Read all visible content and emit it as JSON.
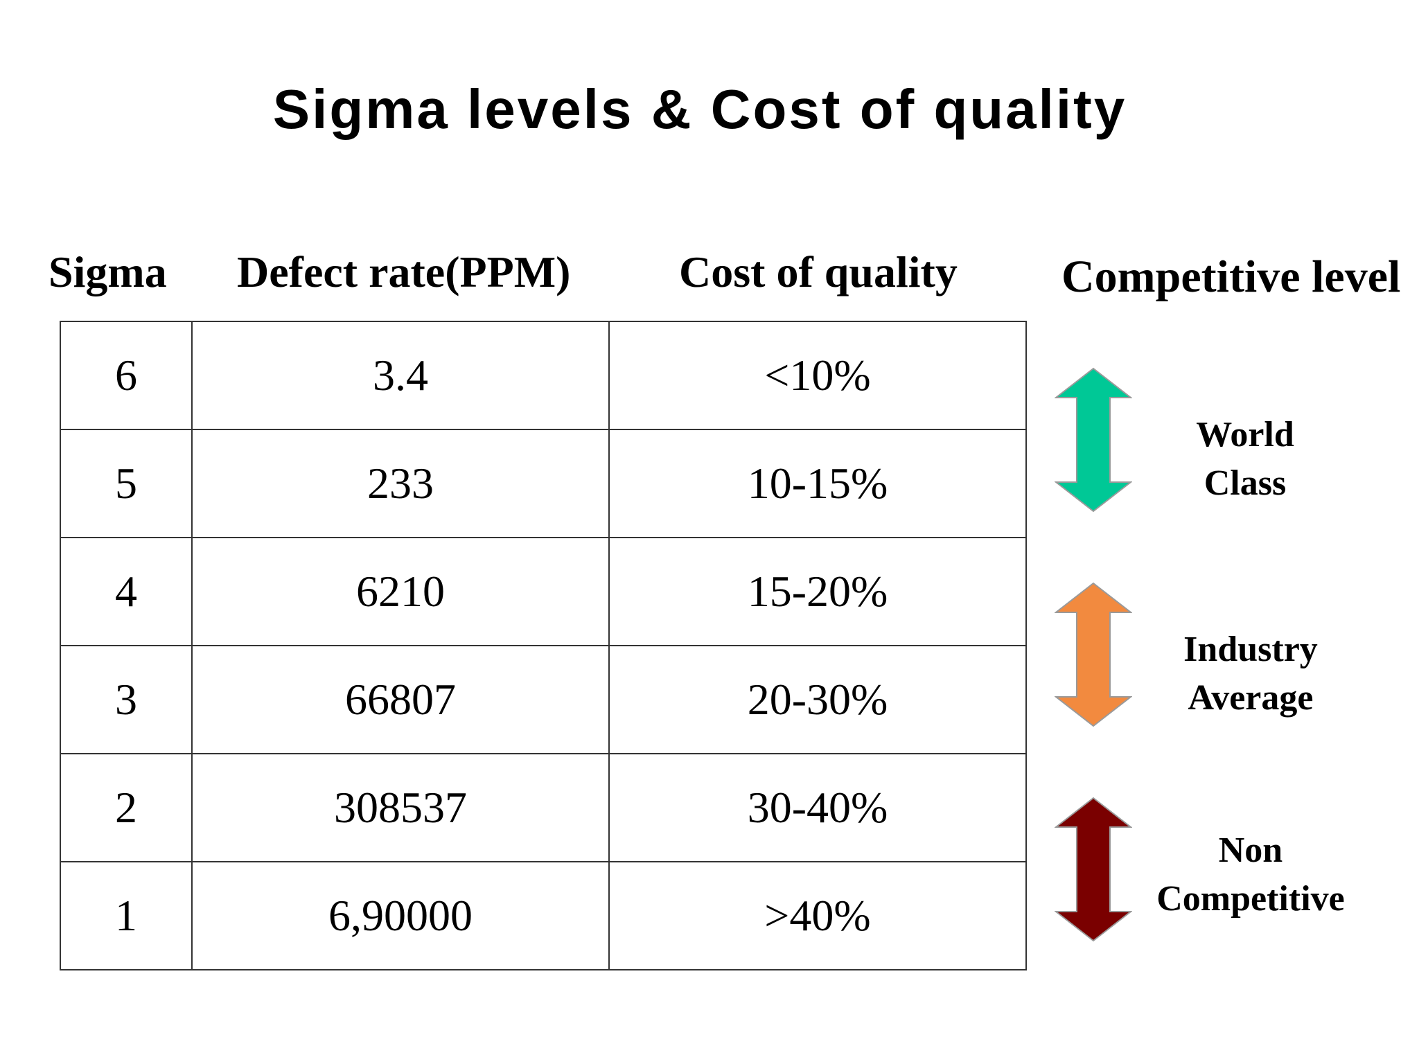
{
  "slide": {
    "title": "Sigma levels & Cost of quality"
  },
  "headers": {
    "sigma": "Sigma",
    "defect_rate": "Defect rate(PPM)",
    "cost_of_quality": "Cost of quality",
    "competitive_level": "Competitive level"
  },
  "rows": [
    {
      "sigma": "6",
      "defect_rate": "3.4",
      "cost": "<10%"
    },
    {
      "sigma": "5",
      "defect_rate": "233",
      "cost": "10-15%"
    },
    {
      "sigma": "4",
      "defect_rate": "6210",
      "cost": "15-20%"
    },
    {
      "sigma": "3",
      "defect_rate": "66807",
      "cost": "20-30%"
    },
    {
      "sigma": "2",
      "defect_rate": "308537",
      "cost": "30-40%"
    },
    {
      "sigma": "1",
      "defect_rate": "6,90000",
      "cost": ">40%"
    }
  ],
  "competitive_levels": [
    {
      "line1": "World",
      "line2": "Class",
      "color": "#00c896",
      "icon": "double-arrow-icon"
    },
    {
      "line1": "Industry",
      "line2": "Average",
      "color": "#f28a3f",
      "icon": "double-arrow-icon"
    },
    {
      "line1": "Non",
      "line2": "Competitive",
      "color": "#7a0000",
      "icon": "double-arrow-icon"
    }
  ]
}
